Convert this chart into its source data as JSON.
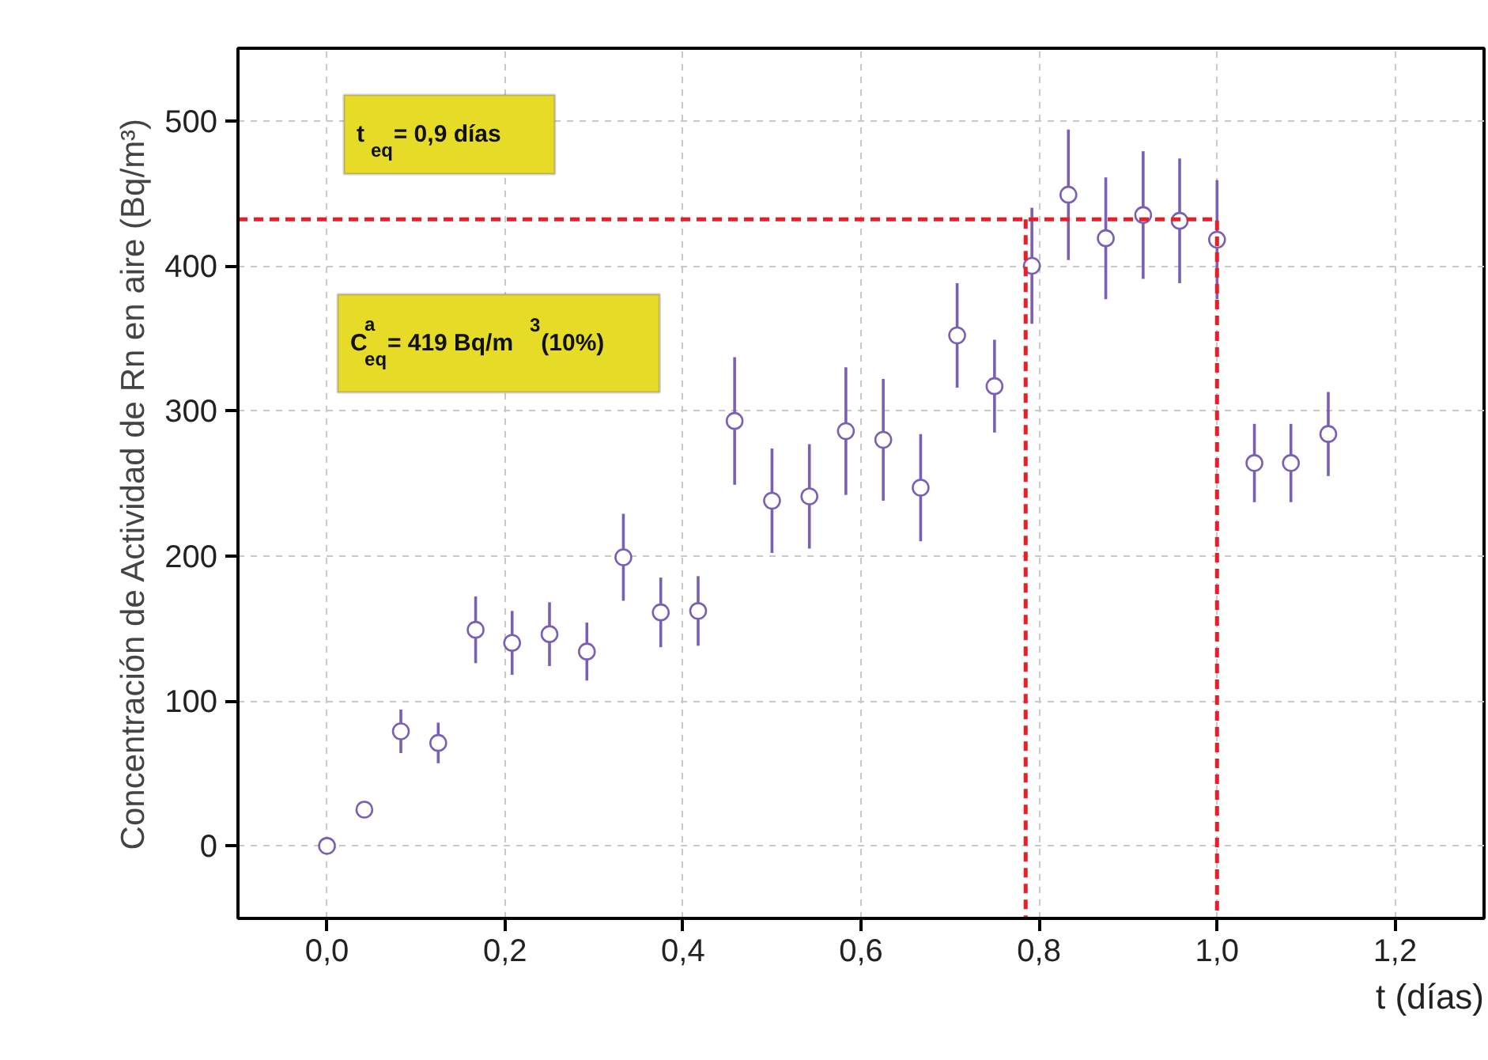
{
  "chart_data": {
    "type": "scatter",
    "xlabel": "t (días)",
    "ylabel": "Concentración de Actividad de Rn en aire (Bq/m³)",
    "annotations": [
      "t$_{eq}$= 0,9 días",
      "C$^{a}$$_{eq}$= 419 Bq/m$^{3}$  (10%)"
    ],
    "xlim": [
      -0.1,
      1.3
    ],
    "ylim": [
      -50,
      550
    ],
    "xticks": [
      {
        "value": 0,
        "label": "0,0"
      },
      {
        "value": 0.2,
        "label": "0,2"
      },
      {
        "value": 0.4,
        "label": "0,4"
      },
      {
        "value": 0.6,
        "label": "0,6"
      },
      {
        "value": 0.8,
        "label": "0,8"
      },
      {
        "value": 1.0,
        "label": "1,0"
      },
      {
        "value": 1.2,
        "label": "1,2"
      }
    ],
    "yticks": [
      0,
      100,
      200,
      300,
      400,
      500
    ],
    "grid": true,
    "marker": "circle",
    "series": [
      {
        "color": "#7b5fb5",
        "x": [
          0,
          0.042,
          0.083,
          0.125,
          0.167,
          0.208,
          0.25,
          0.292,
          0.333,
          0.375,
          0.417,
          0.458,
          0.5,
          0.542,
          0.583,
          0.625,
          0.667,
          0.708,
          0.75,
          0.792,
          0.833,
          0.875,
          0.917,
          0.958,
          1.0,
          1.042,
          1.083,
          1.125
        ],
        "values": [
          0,
          25,
          79,
          71,
          149,
          140,
          146,
          134,
          199,
          161,
          162,
          293,
          238,
          241,
          286,
          280,
          247,
          352,
          317,
          400,
          449,
          419,
          435,
          431,
          418,
          264,
          264,
          284
        ],
        "errors": [
          null,
          null,
          15,
          14,
          23,
          22,
          22,
          20,
          30,
          24,
          24,
          44,
          36,
          36,
          44,
          42,
          37,
          36,
          32,
          40,
          45,
          42,
          44,
          43,
          41,
          27,
          27,
          29
        ]
      },
      {
        "type": "line",
        "color": "#ee1c25",
        "line_style": "dashed",
        "marker": "none",
        "x": [
          -0.1,
          1.0,
          1.0
        ],
        "values": [
          432,
          432,
          -50
        ]
      },
      {
        "type": "line",
        "color": "#ee1c25",
        "line_style": "dashed",
        "marker": "none",
        "x": [
          0.785,
          0.785
        ],
        "values": [
          432,
          -50
        ]
      }
    ]
  }
}
